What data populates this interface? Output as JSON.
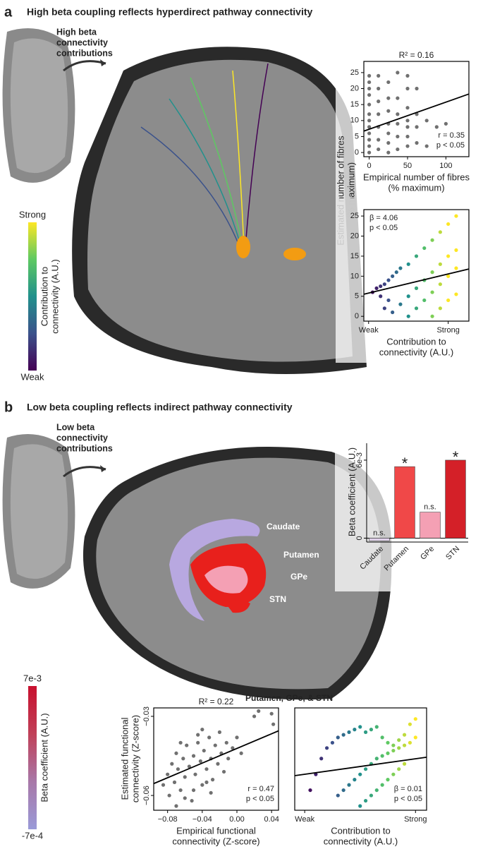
{
  "panel_a": {
    "label": "a",
    "title": "High beta coupling reflects hyperdirect pathway connectivity",
    "inset_label": [
      "High beta",
      "connectivity",
      "contributions"
    ]
  },
  "panel_b": {
    "label": "b",
    "title": "Low beta coupling reflects indirect pathway connectivity",
    "inset_label": [
      "Low beta",
      "connectivity",
      "contributions"
    ],
    "structures": [
      "Caudate",
      "Putamen",
      "GPe",
      "STN"
    ],
    "subfigure_title": "Putamen, GPe, & STN"
  },
  "colorbars": [
    {
      "top": "Strong",
      "bottom": "Weak",
      "title": [
        "Contribution to",
        "connectivity (A.U.)"
      ],
      "colors": [
        "#fde725",
        "#5ec962",
        "#21918c",
        "#3b528b",
        "#440154"
      ]
    },
    {
      "top": "7e-3",
      "bottom": "-7e-4",
      "title": [
        "Beta coefficient (A.U.)"
      ],
      "colors": [
        "#c8102e",
        "#c04058",
        "#a878a8",
        "#9a9ad8"
      ]
    }
  ],
  "chart_data": [
    {
      "type": "scatter",
      "title": "R² = 0.16",
      "color": "#707070",
      "x": [
        0,
        0,
        0,
        0,
        0,
        0,
        0,
        0,
        0,
        0,
        0,
        0,
        12,
        12,
        12,
        12,
        12,
        12,
        12,
        25,
        25,
        25,
        25,
        25,
        25,
        25,
        37,
        37,
        37,
        37,
        37,
        37,
        50,
        50,
        50,
        50,
        50,
        50,
        50,
        62,
        62,
        62,
        62,
        75,
        75,
        88,
        100
      ],
      "y": [
        0,
        2,
        4,
        6,
        8,
        10,
        12,
        15,
        18,
        20,
        22,
        24,
        1,
        4,
        8,
        12,
        16,
        20,
        24,
        0,
        3,
        6,
        9,
        13,
        17,
        22,
        1,
        5,
        9,
        12,
        17,
        25,
        2,
        5,
        8,
        10,
        14,
        20,
        24,
        3,
        8,
        12,
        20,
        2,
        10,
        8,
        9
      ],
      "fit": {
        "x": [
          -7,
          130
        ],
        "y": [
          6.7,
          18.3
        ]
      },
      "xlim": [
        -7,
        130
      ],
      "ylim": [
        -1.3,
        28.5
      ],
      "xticks": [
        0,
        50,
        100
      ],
      "yticks": [
        0,
        5,
        10,
        15,
        20,
        25
      ],
      "xlabel": [
        "Empirical number of fibres",
        "(% maximum)"
      ],
      "ylabel": [
        "Estimated number of fibres",
        "(% maximum)"
      ],
      "annotations": [
        "r = 0.35",
        "p < 0.05"
      ]
    },
    {
      "type": "scatter",
      "colormap": "viridis",
      "x": [
        0.05,
        0.1,
        0.15,
        0.2,
        0.25,
        0.3,
        0.35,
        0.4,
        0.5,
        0.6,
        0.7,
        0.8,
        0.9,
        1.0,
        1.1,
        0.3,
        0.4,
        0.5,
        0.6,
        0.7,
        0.8,
        0.9,
        1.0,
        1.1,
        0.5,
        0.6,
        0.7,
        0.8,
        0.9,
        1.0,
        1.1,
        0.8,
        0.9,
        1.0,
        1.1,
        0.2,
        0.15,
        0.25
      ],
      "y": [
        6,
        7,
        7.5,
        8,
        9,
        10,
        11,
        12,
        13,
        15,
        17,
        19,
        21,
        23,
        25,
        1,
        3,
        5,
        7,
        9,
        11,
        13,
        15,
        16.5,
        0,
        2,
        4,
        6,
        8,
        10,
        12,
        0,
        2,
        4,
        5.5,
        2,
        5,
        4
      ],
      "fit": {
        "x": [
          -0.06,
          1.26
        ],
        "y": [
          5.5,
          11.8
        ]
      },
      "xlim": [
        -0.06,
        1.26
      ],
      "ylim": [
        -1.2,
        26.6
      ],
      "xticks": [
        {
          "value": 0,
          "label": "Weak"
        },
        {
          "value": 1,
          "label": "Strong"
        }
      ],
      "yticks": [
        0,
        5,
        10,
        15,
        20,
        25
      ],
      "xlabel": [
        "Contribution to",
        "connectivity (A.U.)"
      ],
      "annotations": [
        "β = 4.06",
        "p < 0.05"
      ]
    },
    {
      "type": "bar",
      "categories": [
        "Caudate",
        "Putamen",
        "GPe",
        "STN"
      ],
      "values": [
        -0.0002,
        0.0055,
        0.002,
        0.006
      ],
      "colors": [
        "#e4d4ee",
        "#f04848",
        "#f4a0b4",
        "#d42028"
      ],
      "value_labels": [
        "n.s.",
        "*",
        "n.s.",
        "*"
      ],
      "ylim": [
        -0.0003,
        0.0073
      ],
      "yticks": [
        0,
        {
          "value": 0.006,
          "label": "6e-3"
        }
      ],
      "ylabel": [
        "Beta coefficient (A.U.)"
      ]
    },
    {
      "type": "scatter",
      "title": "R² = 0.22",
      "color": "#707070",
      "x": [
        -0.085,
        -0.08,
        -0.078,
        -0.075,
        -0.072,
        -0.07,
        -0.068,
        -0.065,
        -0.062,
        -0.06,
        -0.058,
        -0.055,
        -0.052,
        -0.05,
        -0.048,
        -0.045,
        -0.042,
        -0.04,
        -0.038,
        -0.035,
        -0.032,
        -0.03,
        -0.028,
        -0.025,
        -0.022,
        -0.02,
        -0.018,
        -0.015,
        -0.012,
        -0.01,
        -0.005,
        0,
        0.005,
        0.02,
        0.025,
        0.04,
        0.042,
        -0.07,
        -0.06,
        -0.05,
        -0.04,
        -0.03,
        -0.065,
        -0.045,
        -0.035
      ],
      "y": [
        -0.056,
        -0.052,
        -0.06,
        -0.048,
        -0.055,
        -0.044,
        -0.05,
        -0.058,
        -0.046,
        -0.053,
        -0.041,
        -0.049,
        -0.062,
        -0.045,
        -0.052,
        -0.04,
        -0.047,
        -0.056,
        -0.043,
        -0.05,
        -0.038,
        -0.046,
        -0.054,
        -0.041,
        -0.048,
        -0.036,
        -0.044,
        -0.051,
        -0.04,
        -0.046,
        -0.042,
        -0.038,
        -0.044,
        -0.03,
        -0.028,
        -0.029,
        -0.033,
        -0.064,
        -0.061,
        -0.058,
        -0.035,
        -0.059,
        -0.04,
        -0.037,
        -0.055
      ],
      "fit": {
        "x": [
          -0.096,
          0.048
        ],
        "y": [
          -0.0555,
          -0.0355
        ]
      },
      "xlim": [
        -0.096,
        0.048
      ],
      "ylim": [
        -0.0656,
        -0.0268
      ],
      "xticks": [
        {
          "value": -0.08,
          "label": "−0.08"
        },
        {
          "value": -0.04,
          "label": "−0.04"
        },
        {
          "value": 0,
          "label": "0.00"
        },
        0.04
      ],
      "yticks": [
        {
          "value": -0.06,
          "label": "−0.06"
        },
        {
          "value": -0.03,
          "label": "−0.03"
        }
      ],
      "xlabel": [
        "Empirical functional",
        "connectivity (Z-score)"
      ],
      "ylabel": [
        "Estimated functional",
        "connectivity (Z-score)"
      ],
      "annotations": [
        "r = 0.47",
        "p < 0.05"
      ]
    },
    {
      "type": "scatter",
      "colormap": "viridis",
      "x": [
        0.05,
        0.1,
        0.15,
        0.2,
        0.25,
        0.3,
        0.35,
        0.4,
        0.45,
        0.5,
        0.55,
        0.6,
        0.65,
        0.7,
        0.75,
        0.8,
        0.85,
        0.9,
        0.95,
        1.0,
        0.3,
        0.35,
        0.4,
        0.45,
        0.5,
        0.55,
        0.6,
        0.65,
        0.7,
        0.75,
        0.8,
        0.85,
        0.9,
        0.95,
        1.0,
        0.5,
        0.55,
        0.6,
        0.65,
        0.7,
        0.75,
        0.8,
        0.85,
        0.9
      ],
      "y": [
        -0.058,
        -0.052,
        -0.046,
        -0.042,
        -0.04,
        -0.038,
        -0.037,
        -0.036,
        -0.035,
        -0.034,
        -0.036,
        -0.035,
        -0.034,
        -0.038,
        -0.04,
        -0.041,
        -0.039,
        -0.037,
        -0.033,
        -0.031,
        -0.06,
        -0.058,
        -0.056,
        -0.054,
        -0.052,
        -0.05,
        -0.048,
        -0.046,
        -0.045,
        -0.044,
        -0.043,
        -0.042,
        -0.041,
        -0.04,
        -0.038,
        -0.064,
        -0.062,
        -0.06,
        -0.058,
        -0.056,
        -0.054,
        -0.052,
        -0.05,
        -0.048
      ],
      "fit": {
        "x": [
          -0.09,
          1.1
        ],
        "y": [
          -0.0525,
          -0.0455
        ]
      },
      "xlim": [
        -0.09,
        1.1
      ],
      "ylim": [
        -0.0656,
        -0.0268
      ],
      "xticks": [
        {
          "value": 0,
          "label": "Weak"
        },
        {
          "value": 1,
          "label": "Strong"
        }
      ],
      "xlabel": [
        "Contribution to",
        "connectivity (A.U.)"
      ],
      "annotations": [
        "β = 0.01",
        "p < 0.05"
      ]
    }
  ]
}
